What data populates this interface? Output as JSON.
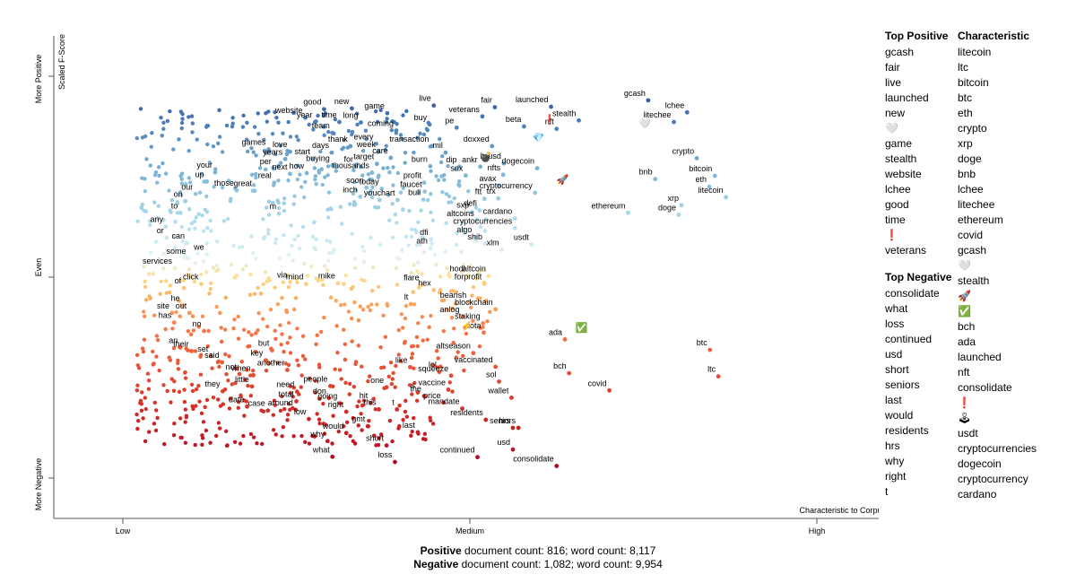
{
  "chart_data": {
    "type": "scatter",
    "xlabel": "Characteristic to Corpus",
    "ylabel": "Scaled F-Score",
    "x_ticks": [
      "Low",
      "Medium",
      "High"
    ],
    "y_ticks": [
      "More Negative",
      "Even",
      "More Positive"
    ],
    "xlim": [
      0,
      1
    ],
    "ylim": [
      0,
      1
    ],
    "color_scale": {
      "positive": "#3b52a0",
      "even": "#ffffbf",
      "negative": "#b2182b"
    },
    "labeled_points": [
      {
        "term": "gcash",
        "x": 0.757,
        "y": 0.94
      },
      {
        "term": "lchee",
        "x": 0.813,
        "y": 0.91
      },
      {
        "term": "litechee",
        "x": 0.794,
        "y": 0.886
      },
      {
        "term": "launched",
        "x": 0.617,
        "y": 0.924
      },
      {
        "term": "stealth",
        "x": 0.657,
        "y": 0.89
      },
      {
        "term": "nft",
        "x": 0.625,
        "y": 0.869
      },
      {
        "term": "beta",
        "x": 0.578,
        "y": 0.875
      },
      {
        "term": "fair",
        "x": 0.536,
        "y": 0.923
      },
      {
        "term": "veterans",
        "x": 0.518,
        "y": 0.9
      },
      {
        "term": "live",
        "x": 0.448,
        "y": 0.927
      },
      {
        "term": "buy",
        "x": 0.442,
        "y": 0.88
      },
      {
        "term": "pe",
        "x": 0.481,
        "y": 0.872
      },
      {
        "term": "game",
        "x": 0.381,
        "y": 0.908
      },
      {
        "term": "new",
        "x": 0.33,
        "y": 0.92
      },
      {
        "term": "good",
        "x": 0.29,
        "y": 0.918
      },
      {
        "term": "website",
        "x": 0.263,
        "y": 0.897
      },
      {
        "term": "year",
        "x": 0.277,
        "y": 0.886
      },
      {
        "term": "time",
        "x": 0.312,
        "y": 0.886
      },
      {
        "term": "long",
        "x": 0.343,
        "y": 0.885
      },
      {
        "term": "team",
        "x": 0.302,
        "y": 0.859
      },
      {
        "term": "coming",
        "x": 0.394,
        "y": 0.865
      },
      {
        "term": "transaction",
        "x": 0.445,
        "y": 0.826
      },
      {
        "term": "doxxed",
        "x": 0.532,
        "y": 0.826
      },
      {
        "term": "mil",
        "x": 0.465,
        "y": 0.81
      },
      {
        "term": "every",
        "x": 0.365,
        "y": 0.832
      },
      {
        "term": "week",
        "x": 0.368,
        "y": 0.812
      },
      {
        "term": "thank",
        "x": 0.328,
        "y": 0.826
      },
      {
        "term": "days",
        "x": 0.301,
        "y": 0.81
      },
      {
        "term": "care",
        "x": 0.386,
        "y": 0.797
      },
      {
        "term": "games",
        "x": 0.21,
        "y": 0.818
      },
      {
        "term": "love",
        "x": 0.241,
        "y": 0.812
      },
      {
        "term": "years",
        "x": 0.234,
        "y": 0.794
      },
      {
        "term": "start",
        "x": 0.274,
        "y": 0.795
      },
      {
        "term": "target",
        "x": 0.366,
        "y": 0.782
      },
      {
        "term": "buying",
        "x": 0.302,
        "y": 0.778
      },
      {
        "term": "for",
        "x": 0.336,
        "y": 0.776
      },
      {
        "term": "burn",
        "x": 0.443,
        "y": 0.776
      },
      {
        "term": "dip",
        "x": 0.485,
        "y": 0.775
      },
      {
        "term": "ankr",
        "x": 0.515,
        "y": 0.775
      },
      {
        "term": "ltcusd",
        "x": 0.549,
        "y": 0.783
      },
      {
        "term": "dogecoin",
        "x": 0.597,
        "y": 0.771
      },
      {
        "term": "per",
        "x": 0.218,
        "y": 0.77
      },
      {
        "term": "next",
        "x": 0.241,
        "y": 0.757
      },
      {
        "term": "how",
        "x": 0.265,
        "y": 0.759
      },
      {
        "term": "thousands",
        "x": 0.359,
        "y": 0.76
      },
      {
        "term": "snx",
        "x": 0.494,
        "y": 0.753
      },
      {
        "term": "nfts",
        "x": 0.548,
        "y": 0.755
      },
      {
        "term": "your",
        "x": 0.133,
        "y": 0.761
      },
      {
        "term": "up",
        "x": 0.121,
        "y": 0.738
      },
      {
        "term": "real",
        "x": 0.218,
        "y": 0.735
      },
      {
        "term": "profit",
        "x": 0.434,
        "y": 0.735
      },
      {
        "term": "avax",
        "x": 0.542,
        "y": 0.728
      },
      {
        "term": "those",
        "x": 0.164,
        "y": 0.716
      },
      {
        "term": "great",
        "x": 0.19,
        "y": 0.715
      },
      {
        "term": "soon",
        "x": 0.351,
        "y": 0.723
      },
      {
        "term": "today",
        "x": 0.373,
        "y": 0.72
      },
      {
        "term": "faucet",
        "x": 0.435,
        "y": 0.713
      },
      {
        "term": "cryptocurrency",
        "x": 0.594,
        "y": 0.71
      },
      {
        "term": "our",
        "x": 0.105,
        "y": 0.707
      },
      {
        "term": "inch",
        "x": 0.342,
        "y": 0.7
      },
      {
        "term": "you",
        "x": 0.37,
        "y": 0.692
      },
      {
        "term": "chart",
        "x": 0.396,
        "y": 0.692
      },
      {
        "term": "bull",
        "x": 0.433,
        "y": 0.693
      },
      {
        "term": "ftt",
        "x": 0.521,
        "y": 0.695
      },
      {
        "term": "trx",
        "x": 0.541,
        "y": 0.696
      },
      {
        "term": "on",
        "x": 0.09,
        "y": 0.689
      },
      {
        "term": "defi",
        "x": 0.514,
        "y": 0.666
      },
      {
        "term": "sxp",
        "x": 0.503,
        "y": 0.662
      },
      {
        "term": "to",
        "x": 0.083,
        "y": 0.66
      },
      {
        "term": "m",
        "x": 0.225,
        "y": 0.658
      },
      {
        "term": "altcoins",
        "x": 0.51,
        "y": 0.641
      },
      {
        "term": "cardano",
        "x": 0.565,
        "y": 0.646
      },
      {
        "term": "cryptocurrencies",
        "x": 0.565,
        "y": 0.622
      },
      {
        "term": "any",
        "x": 0.062,
        "y": 0.626
      },
      {
        "term": "or",
        "x": 0.063,
        "y": 0.598
      },
      {
        "term": "dfi",
        "x": 0.444,
        "y": 0.594
      },
      {
        "term": "algo",
        "x": 0.507,
        "y": 0.6
      },
      {
        "term": "can",
        "x": 0.093,
        "y": 0.585
      },
      {
        "term": "ath",
        "x": 0.443,
        "y": 0.572
      },
      {
        "term": "shib",
        "x": 0.522,
        "y": 0.583
      },
      {
        "term": "xlm",
        "x": 0.546,
        "y": 0.568
      },
      {
        "term": "usdt",
        "x": 0.589,
        "y": 0.581
      },
      {
        "term": "we",
        "x": 0.121,
        "y": 0.557
      },
      {
        "term": "some",
        "x": 0.095,
        "y": 0.547
      },
      {
        "term": "services",
        "x": 0.075,
        "y": 0.522
      },
      {
        "term": "hodl",
        "x": 0.497,
        "y": 0.503
      },
      {
        "term": "altcoin",
        "x": 0.527,
        "y": 0.503
      },
      {
        "term": "forprofit",
        "x": 0.521,
        "y": 0.483
      },
      {
        "term": "via",
        "x": 0.241,
        "y": 0.488
      },
      {
        "term": "mind",
        "x": 0.264,
        "y": 0.483
      },
      {
        "term": "mike",
        "x": 0.31,
        "y": 0.485
      },
      {
        "term": "flare",
        "x": 0.431,
        "y": 0.481
      },
      {
        "term": "hex",
        "x": 0.448,
        "y": 0.468
      },
      {
        "term": "click",
        "x": 0.113,
        "y": 0.483
      },
      {
        "term": "of",
        "x": 0.088,
        "y": 0.473
      },
      {
        "term": "bearish",
        "x": 0.499,
        "y": 0.438
      },
      {
        "term": "lt",
        "x": 0.415,
        "y": 0.433
      },
      {
        "term": "blockchain",
        "x": 0.537,
        "y": 0.42
      },
      {
        "term": "he",
        "x": 0.086,
        "y": 0.43
      },
      {
        "term": "site",
        "x": 0.071,
        "y": 0.411
      },
      {
        "term": "out",
        "x": 0.096,
        "y": 0.411
      },
      {
        "term": "anlog",
        "x": 0.489,
        "y": 0.402
      },
      {
        "term": "has",
        "x": 0.074,
        "y": 0.387
      },
      {
        "term": "staking",
        "x": 0.519,
        "y": 0.385
      },
      {
        "term": "iota",
        "x": 0.52,
        "y": 0.362
      },
      {
        "term": "no",
        "x": 0.117,
        "y": 0.366
      },
      {
        "term": "ada",
        "x": 0.637,
        "y": 0.345
      },
      {
        "term": "an",
        "x": 0.083,
        "y": 0.325
      },
      {
        "term": "their",
        "x": 0.099,
        "y": 0.316
      },
      {
        "term": "but",
        "x": 0.215,
        "y": 0.318
      },
      {
        "term": "set",
        "x": 0.127,
        "y": 0.304
      },
      {
        "term": "key",
        "x": 0.206,
        "y": 0.293
      },
      {
        "term": "said",
        "x": 0.143,
        "y": 0.288
      },
      {
        "term": "another",
        "x": 0.237,
        "y": 0.269
      },
      {
        "term": "like",
        "x": 0.414,
        "y": 0.276
      },
      {
        "term": "lol",
        "x": 0.456,
        "y": 0.264
      },
      {
        "term": "altseason",
        "x": 0.505,
        "y": 0.311
      },
      {
        "term": "vaccinated",
        "x": 0.537,
        "y": 0.277
      },
      {
        "term": "squeeze",
        "x": 0.473,
        "y": 0.255
      },
      {
        "term": "bch",
        "x": 0.643,
        "y": 0.261
      },
      {
        "term": "not",
        "x": 0.168,
        "y": 0.259
      },
      {
        "term": "when",
        "x": 0.188,
        "y": 0.256
      },
      {
        "term": "sol",
        "x": 0.542,
        "y": 0.24
      },
      {
        "term": "btc",
        "x": 0.846,
        "y": 0.319
      },
      {
        "term": "ltc",
        "x": 0.858,
        "y": 0.253
      },
      {
        "term": "little",
        "x": 0.186,
        "y": 0.228
      },
      {
        "term": "people",
        "x": 0.299,
        "y": 0.229
      },
      {
        "term": "one",
        "x": 0.38,
        "y": 0.226
      },
      {
        "term": "vaccine",
        "x": 0.469,
        "y": 0.22
      },
      {
        "term": "covid",
        "x": 0.701,
        "y": 0.218
      },
      {
        "term": "they",
        "x": 0.144,
        "y": 0.216
      },
      {
        "term": "need",
        "x": 0.251,
        "y": 0.215
      },
      {
        "term": "s",
        "x": 0.425,
        "y": 0.213
      },
      {
        "term": "the",
        "x": 0.434,
        "y": 0.204
      },
      {
        "term": "wallet",
        "x": 0.56,
        "y": 0.2
      },
      {
        "term": "don",
        "x": 0.297,
        "y": 0.199
      },
      {
        "term": "total",
        "x": 0.25,
        "y": 0.191
      },
      {
        "term": "price",
        "x": 0.462,
        "y": 0.188
      },
      {
        "term": "going",
        "x": 0.313,
        "y": 0.186
      },
      {
        "term": "hit",
        "x": 0.357,
        "y": 0.187
      },
      {
        "term": "date",
        "x": 0.179,
        "y": 0.178
      },
      {
        "term": "case",
        "x": 0.209,
        "y": 0.168
      },
      {
        "term": "around",
        "x": 0.249,
        "y": 0.17
      },
      {
        "term": "this",
        "x": 0.369,
        "y": 0.171
      },
      {
        "term": "t",
        "x": 0.395,
        "y": 0.171
      },
      {
        "term": "right",
        "x": 0.322,
        "y": 0.165
      },
      {
        "term": "mandate",
        "x": 0.489,
        "y": 0.173
      },
      {
        "term": "low",
        "x": 0.268,
        "y": 0.147
      },
      {
        "term": "residents",
        "x": 0.523,
        "y": 0.145
      },
      {
        "term": "gmt",
        "x": 0.353,
        "y": 0.129
      },
      {
        "term": "hrs",
        "x": 0.562,
        "y": 0.125
      },
      {
        "term": "seniors",
        "x": 0.57,
        "y": 0.125
      },
      {
        "term": "would",
        "x": 0.322,
        "y": 0.112
      },
      {
        "term": "last",
        "x": 0.425,
        "y": 0.114
      },
      {
        "term": "why",
        "x": 0.295,
        "y": 0.092
      },
      {
        "term": "short",
        "x": 0.38,
        "y": 0.081
      },
      {
        "term": "usd",
        "x": 0.562,
        "y": 0.071
      },
      {
        "term": "what",
        "x": 0.302,
        "y": 0.053
      },
      {
        "term": "continued",
        "x": 0.511,
        "y": 0.052
      },
      {
        "term": "loss",
        "x": 0.392,
        "y": 0.04
      },
      {
        "term": "consolidate",
        "x": 0.625,
        "y": 0.03
      },
      {
        "term": "crypto",
        "x": 0.827,
        "y": 0.796
      },
      {
        "term": "bitcoin",
        "x": 0.853,
        "y": 0.752
      },
      {
        "term": "eth",
        "x": 0.845,
        "y": 0.725
      },
      {
        "term": "bnb",
        "x": 0.767,
        "y": 0.744
      },
      {
        "term": "litecoin",
        "x": 0.869,
        "y": 0.699
      },
      {
        "term": "xrp",
        "x": 0.805,
        "y": 0.679
      },
      {
        "term": "doge",
        "x": 0.801,
        "y": 0.655
      },
      {
        "term": "ethereum",
        "x": 0.728,
        "y": 0.66
      }
    ],
    "emoji_points": [
      {
        "emoji": "🤍",
        "x": 0.752,
        "y": 0.883
      },
      {
        "emoji": "❗",
        "x": 0.615,
        "y": 0.893
      },
      {
        "emoji": "💎",
        "x": 0.599,
        "y": 0.848
      },
      {
        "emoji": "💣",
        "x": 0.524,
        "y": 0.8
      },
      {
        "emoji": "🚀",
        "x": 0.634,
        "y": 0.743
      },
      {
        "emoji": "⚡",
        "x": 0.496,
        "y": 0.38
      },
      {
        "emoji": "✅",
        "x": 0.661,
        "y": 0.375
      }
    ]
  },
  "axes": {
    "x_title": "Characteristic to Corpus",
    "x_low": "Low",
    "x_medium": "Medium",
    "x_high": "High",
    "y_title": "Scaled F-Score",
    "y_more_positive": "More Positive",
    "y_even": "Even",
    "y_more_negative": "More Negative"
  },
  "side_panel": {
    "top_positive_title": "Top Positive",
    "top_positive": [
      "gcash",
      "fair",
      "live",
      "launched",
      "new",
      "🤍",
      "game",
      "stealth",
      "website",
      "lchee",
      "good",
      "time",
      "❗",
      "veterans"
    ],
    "top_negative_title": "Top Negative",
    "top_negative": [
      "consolidate",
      "what",
      "loss",
      "continued",
      "usd",
      "short",
      "seniors",
      "last",
      "would",
      "residents",
      "hrs",
      "why",
      "right",
      "t"
    ],
    "characteristic_title": "Characteristic",
    "characteristic": [
      "litecoin",
      "ltc",
      "bitcoin",
      "btc",
      "eth",
      "crypto",
      "xrp",
      "doge",
      "bnb",
      "lchee",
      "litechee",
      "ethereum",
      "covid",
      "gcash",
      "🤍",
      "stealth",
      "🚀",
      "✅",
      "bch",
      "ada",
      "launched",
      "nft",
      "consolidate",
      "❗",
      "🕹",
      "usdt",
      "cryptocurrencies",
      "dogecoin",
      "cryptocurrency",
      "cardano"
    ]
  },
  "footer": {
    "positive_label": "Positive",
    "positive_counts": "document count: 816; word count: 8,117",
    "negative_label": "Negative",
    "negative_counts": "document count: 1,082; word count: 9,954"
  }
}
